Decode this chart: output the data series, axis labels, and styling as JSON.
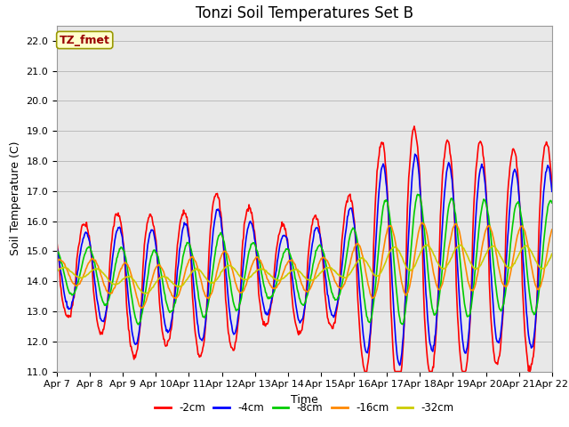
{
  "title": "Tonzi Soil Temperatures Set B",
  "xlabel": "Time",
  "ylabel": "Soil Temperature (C)",
  "ylim": [
    11.0,
    22.5
  ],
  "yticks": [
    11.0,
    12.0,
    13.0,
    14.0,
    15.0,
    16.0,
    17.0,
    18.0,
    19.0,
    20.0,
    21.0,
    22.0
  ],
  "x_labels": [
    "Apr 7",
    "Apr 8",
    "Apr 9",
    "Apr 10",
    "Apr 11",
    "Apr 12",
    "Apr 13",
    "Apr 14",
    "Apr 15",
    "Apr 16",
    "Apr 17",
    "Apr 18",
    "Apr 19",
    "Apr 20",
    "Apr 21",
    "Apr 22"
  ],
  "series_labels": [
    "-2cm",
    "-4cm",
    "-8cm",
    "-16cm",
    "-32cm"
  ],
  "series_colors": [
    "#ff0000",
    "#0000ff",
    "#00cc00",
    "#ff8800",
    "#cccc00"
  ],
  "line_widths": [
    1.2,
    1.2,
    1.2,
    1.2,
    1.2
  ],
  "annotation_text": "TZ_fmet",
  "annotation_color": "#990000",
  "annotation_bg": "#ffffcc",
  "annotation_border": "#999900",
  "bg_color": "#e8e8e8",
  "title_fontsize": 12,
  "label_fontsize": 9,
  "tick_fontsize": 8
}
